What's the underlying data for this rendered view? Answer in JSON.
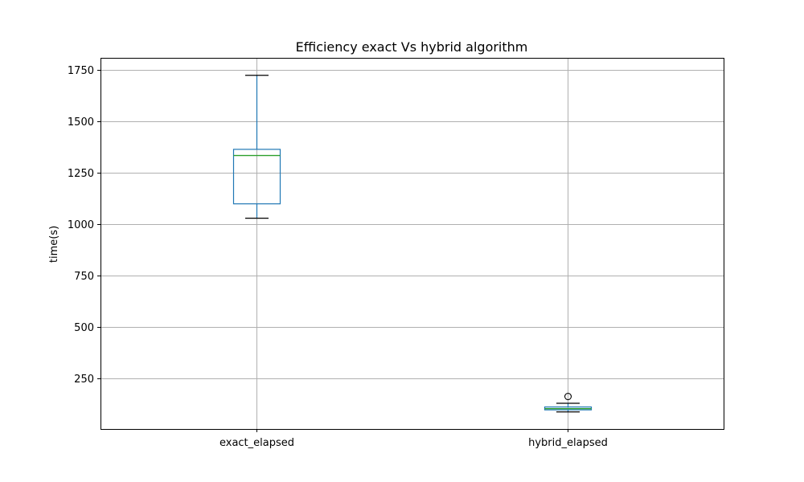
{
  "chart_data": {
    "type": "box",
    "title": "Efficiency exact Vs hybrid algorithm",
    "xlabel": "",
    "ylabel": "time(s)",
    "categories": [
      "exact_elapsed",
      "hybrid_elapsed"
    ],
    "boxes": [
      {
        "category": "exact_elapsed",
        "whisker_low": 1030,
        "q1": 1100,
        "median": 1335,
        "q3": 1365,
        "whisker_high": 1725,
        "outliers": []
      },
      {
        "category": "hybrid_elapsed",
        "whisker_low": 88,
        "q1": 98,
        "median": 104,
        "q3": 112,
        "whisker_high": 130,
        "outliers": [
          163
        ]
      }
    ],
    "yticks": [
      250,
      500,
      750,
      1000,
      1250,
      1500,
      1750
    ],
    "ylim": [
      5,
      1810
    ],
    "grid": true,
    "colors": {
      "box": "#1f77b4",
      "median": "#2ca02c",
      "whisker_cap": "#000000",
      "grid": "#b0b0b0",
      "hybrid_median": "#2ca02c"
    }
  }
}
